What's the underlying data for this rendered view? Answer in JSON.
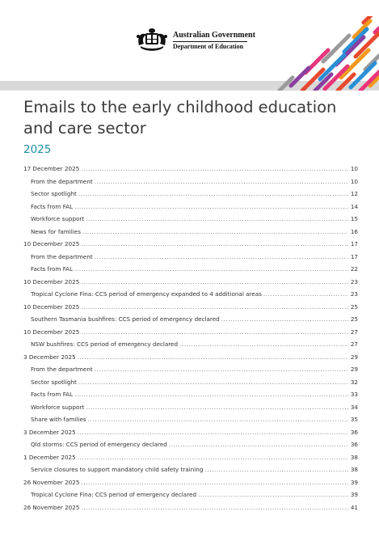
{
  "header": {
    "gov_name": "Australian Government",
    "department": "Department of Education",
    "stripe_colors": [
      "#e84a2f",
      "#f29a1f",
      "#2b8fd6",
      "#e8367a",
      "#9a9a9a",
      "#8a3fa0"
    ]
  },
  "document": {
    "title": "Emails to the early childhood education and care sector",
    "year": "2025"
  },
  "toc": [
    {
      "level": 1,
      "label": "17 December 2025",
      "page": "10"
    },
    {
      "level": 2,
      "label": "From the department",
      "page": "10"
    },
    {
      "level": 2,
      "label": "Sector spotlight",
      "page": "12"
    },
    {
      "level": 2,
      "label": "Facts from FAL",
      "page": "14"
    },
    {
      "level": 2,
      "label": "Workforce support",
      "page": "15"
    },
    {
      "level": 2,
      "label": "News for families",
      "page": "16"
    },
    {
      "level": 1,
      "label": "10 December 2025",
      "page": "17"
    },
    {
      "level": 2,
      "label": "From the department",
      "page": "17"
    },
    {
      "level": 2,
      "label": "Facts from FAL",
      "page": "22"
    },
    {
      "level": 1,
      "label": "10 December 2025",
      "page": "23"
    },
    {
      "level": 2,
      "label": "Tropical Cyclone Fina: CCS period of emergency expanded to 4 additional areas",
      "page": "23"
    },
    {
      "level": 1,
      "label": "10 December 2025",
      "page": "25"
    },
    {
      "level": 2,
      "label": "Southern Tasmania bushfires: CCS period of emergency declared",
      "page": "25"
    },
    {
      "level": 1,
      "label": "10 December 2025",
      "page": "27"
    },
    {
      "level": 2,
      "label": "NSW bushfires: CCS period of emergency declared",
      "page": "27"
    },
    {
      "level": 1,
      "label": "3 December 2025",
      "page": "29"
    },
    {
      "level": 2,
      "label": "From the department",
      "page": "29"
    },
    {
      "level": 2,
      "label": "Sector spotlight",
      "page": "32"
    },
    {
      "level": 2,
      "label": "Facts from FAL",
      "page": "33"
    },
    {
      "level": 2,
      "label": "Workforce support",
      "page": "34"
    },
    {
      "level": 2,
      "label": "Share with families",
      "page": "35"
    },
    {
      "level": 1,
      "label": "3 December 2025",
      "page": "36"
    },
    {
      "level": 2,
      "label": "Qld storms: CCS period of emergency declared",
      "page": "36"
    },
    {
      "level": 1,
      "label": "1 December 2025",
      "page": "38"
    },
    {
      "level": 2,
      "label": "Service closures to support mandatory child safety training",
      "page": "38"
    },
    {
      "level": 1,
      "label": "26 November 2025",
      "page": "39"
    },
    {
      "level": 2,
      "label": "Tropical Cyclone Fina: CCS period of emergency declared",
      "page": "39"
    },
    {
      "level": 1,
      "label": "26 November 2025",
      "page": "41"
    }
  ]
}
